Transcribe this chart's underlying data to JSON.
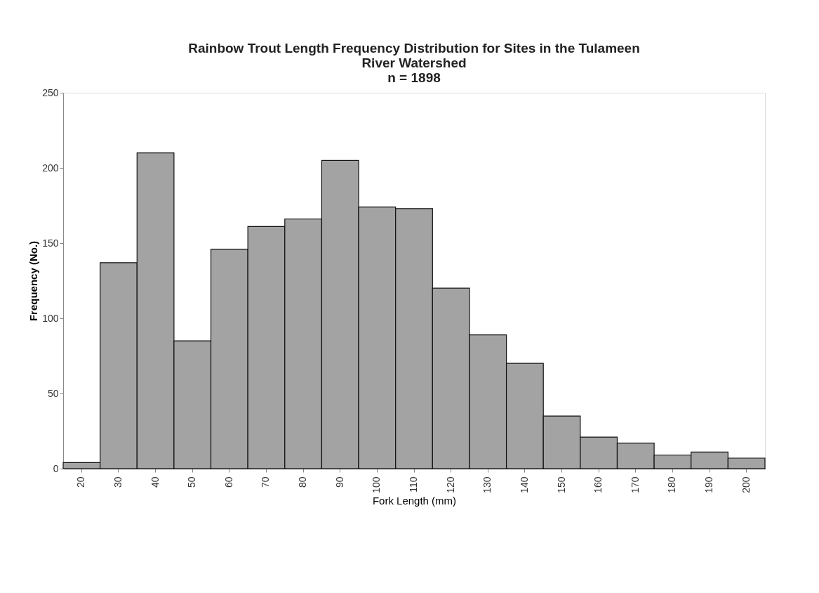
{
  "chart_data": {
    "type": "bar",
    "title": "Rainbow Trout Length Frequency Distribution for Sites in the Tulameen River Watershed",
    "subtitle": "n = 1898",
    "xlabel": "Fork Length (mm)",
    "ylabel": "Frequency (No.)",
    "categories": [
      "20",
      "30",
      "40",
      "50",
      "60",
      "70",
      "80",
      "90",
      "100",
      "110",
      "120",
      "130",
      "140",
      "150",
      "160",
      "170",
      "180",
      "190",
      "200"
    ],
    "values": [
      4,
      137,
      210,
      85,
      146,
      161,
      166,
      205,
      174,
      173,
      120,
      89,
      70,
      35,
      21,
      17,
      9,
      11,
      7
    ],
    "color": "#a3a3a3",
    "ylim": [
      0,
      250
    ],
    "yticks": [
      0,
      50,
      100,
      150,
      200,
      250
    ],
    "grid": false
  }
}
